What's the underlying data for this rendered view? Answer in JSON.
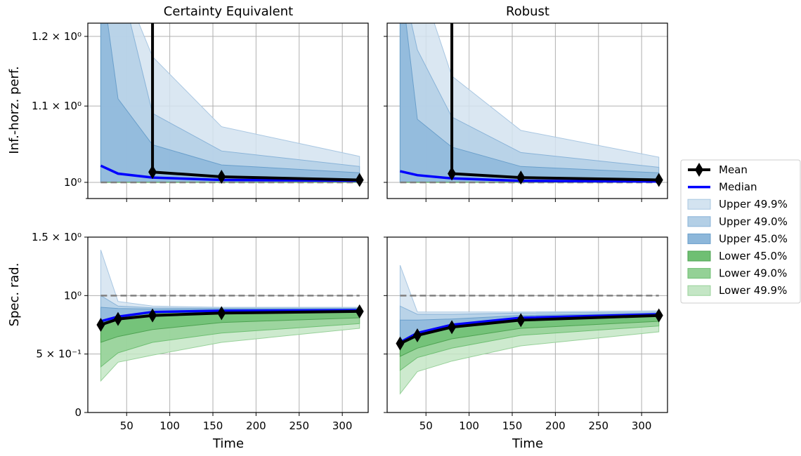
{
  "figure": {
    "titles": [
      "Certainty Equivalent",
      "Robust"
    ],
    "xlabel": "Time",
    "row_ylabels": [
      "Inf.-horz. perf.",
      "Spec. rad."
    ],
    "x_ticks": [
      "50",
      "100",
      "150",
      "200",
      "250",
      "300"
    ],
    "top_y_ticks": [
      "1.2 × 10⁰",
      "1.1 × 10⁰",
      "10⁰"
    ],
    "bottom_y_ticks": [
      "1.5 × 10⁰",
      "10⁰",
      "5 × 10⁻¹",
      "0"
    ]
  },
  "legend": [
    {
      "label": "Mean",
      "kind": "line-marker",
      "color": "#000000"
    },
    {
      "label": "Median",
      "kind": "line",
      "color": "#0000ff"
    },
    {
      "label": "Upper 49.9%",
      "kind": "patch",
      "color": "#d3e3f0",
      "edge": "#a9c7e2"
    },
    {
      "label": "Upper 49.0%",
      "kind": "patch",
      "color": "#b3cfe6",
      "edge": "#89b3d8"
    },
    {
      "label": "Upper 45.0%",
      "kind": "patch",
      "color": "#8db7da",
      "edge": "#6a9fcb"
    },
    {
      "label": "Lower 45.0%",
      "kind": "patch",
      "color": "#6fbf73",
      "edge": "#4ea352"
    },
    {
      "label": "Lower 49.0%",
      "kind": "patch",
      "color": "#94d196",
      "edge": "#6fbf73"
    },
    {
      "label": "Lower 49.9%",
      "kind": "patch",
      "color": "#c4e6c5",
      "edge": "#98d19a"
    }
  ],
  "chart_data": [
    {
      "type": "area",
      "panel": "top-left",
      "title": "Certainty Equivalent",
      "ylabel": "Inf.-horz. perf.",
      "xlabel": "",
      "xlim": [
        5,
        330
      ],
      "ylim": [
        0.98,
        1.22
      ],
      "y_scale": "log",
      "grid": true,
      "reference_line": 1.0,
      "x": [
        20,
        40,
        80,
        160,
        320
      ],
      "bands": {
        "upper_49_9": [
          1.3,
          1.3,
          1.17,
          1.072,
          1.033
        ],
        "upper_49_0": [
          1.3,
          1.3,
          1.09,
          1.04,
          1.02
        ],
        "upper_45_0": [
          1.3,
          1.11,
          1.048,
          1.022,
          1.012
        ],
        "lower_45_0": [
          1.0,
          1.0,
          1.0,
          1.0,
          1.0
        ],
        "lower_49_0": [
          1.0,
          1.0,
          1.0,
          1.0,
          1.0
        ],
        "lower_49_9": [
          1.0,
          1.0,
          1.0,
          1.0,
          1.0
        ]
      },
      "median": [
        1.021,
        1.011,
        1.006,
        1.003,
        1.002
      ],
      "mean": {
        "x": [
          80,
          160,
          320
        ],
        "y": [
          1.013,
          1.007,
          1.003
        ],
        "spike_x": 80
      }
    },
    {
      "type": "area",
      "panel": "top-right",
      "title": "Robust",
      "ylabel": "",
      "xlabel": "",
      "xlim": [
        5,
        330
      ],
      "ylim": [
        0.98,
        1.22
      ],
      "y_scale": "log",
      "grid": true,
      "reference_line": 1.0,
      "x": [
        20,
        40,
        80,
        160,
        320
      ],
      "bands": {
        "upper_49_9": [
          1.3,
          1.3,
          1.142,
          1.067,
          1.032
        ],
        "upper_49_0": [
          1.3,
          1.18,
          1.085,
          1.038,
          1.019
        ],
        "upper_45_0": [
          1.3,
          1.082,
          1.045,
          1.02,
          1.012
        ],
        "lower_45_0": [
          1.0,
          1.0,
          1.0,
          1.0,
          1.0
        ],
        "lower_49_0": [
          1.0,
          1.0,
          1.0,
          1.0,
          1.0
        ],
        "lower_49_9": [
          1.0,
          1.0,
          1.0,
          1.0,
          1.0
        ]
      },
      "median": [
        1.014,
        1.009,
        1.005,
        1.002,
        1.001
      ],
      "mean": {
        "x": [
          80,
          160,
          320
        ],
        "y": [
          1.011,
          1.006,
          1.003
        ],
        "spike_x": 80
      }
    },
    {
      "type": "area",
      "panel": "bottom-left",
      "title": "",
      "ylabel": "Spec. rad.",
      "xlabel": "Time",
      "xlim": [
        5,
        330
      ],
      "ylim": [
        0,
        1.5
      ],
      "grid": true,
      "reference_line": 1.0,
      "x": [
        20,
        40,
        80,
        160,
        320
      ],
      "bands": {
        "upper_49_9": [
          1.39,
          0.95,
          0.91,
          0.9,
          0.9
        ],
        "upper_49_0": [
          1.0,
          0.91,
          0.895,
          0.892,
          0.892
        ],
        "upper_45_0": [
          0.9,
          0.89,
          0.885,
          0.885,
          0.888
        ],
        "lower_45_0": [
          0.6,
          0.65,
          0.71,
          0.77,
          0.81
        ],
        "lower_49_0": [
          0.39,
          0.51,
          0.6,
          0.68,
          0.76
        ],
        "lower_49_9": [
          0.27,
          0.43,
          0.49,
          0.6,
          0.72
        ]
      },
      "median": [
        0.78,
        0.82,
        0.86,
        0.87,
        0.875
      ],
      "mean": {
        "x": [
          20,
          40,
          80,
          160,
          320
        ],
        "y": [
          0.75,
          0.8,
          0.83,
          0.85,
          0.865
        ]
      }
    },
    {
      "type": "area",
      "panel": "bottom-right",
      "title": "",
      "ylabel": "",
      "xlabel": "Time",
      "xlim": [
        5,
        330
      ],
      "ylim": [
        0,
        1.5
      ],
      "grid": true,
      "reference_line": 1.0,
      "x": [
        20,
        40,
        80,
        160,
        320
      ],
      "bands": {
        "upper_49_9": [
          1.26,
          0.86,
          0.86,
          0.86,
          0.87
        ],
        "upper_49_0": [
          0.91,
          0.84,
          0.84,
          0.85,
          0.86
        ],
        "upper_45_0": [
          0.79,
          0.79,
          0.8,
          0.83,
          0.85
        ],
        "lower_45_0": [
          0.48,
          0.55,
          0.63,
          0.72,
          0.78
        ],
        "lower_49_0": [
          0.36,
          0.47,
          0.55,
          0.66,
          0.74
        ],
        "lower_49_9": [
          0.16,
          0.35,
          0.44,
          0.57,
          0.69
        ]
      },
      "median": [
        0.6,
        0.68,
        0.75,
        0.81,
        0.84
      ],
      "mean": {
        "x": [
          20,
          40,
          80,
          160,
          320
        ],
        "y": [
          0.59,
          0.66,
          0.73,
          0.79,
          0.83
        ]
      }
    }
  ]
}
